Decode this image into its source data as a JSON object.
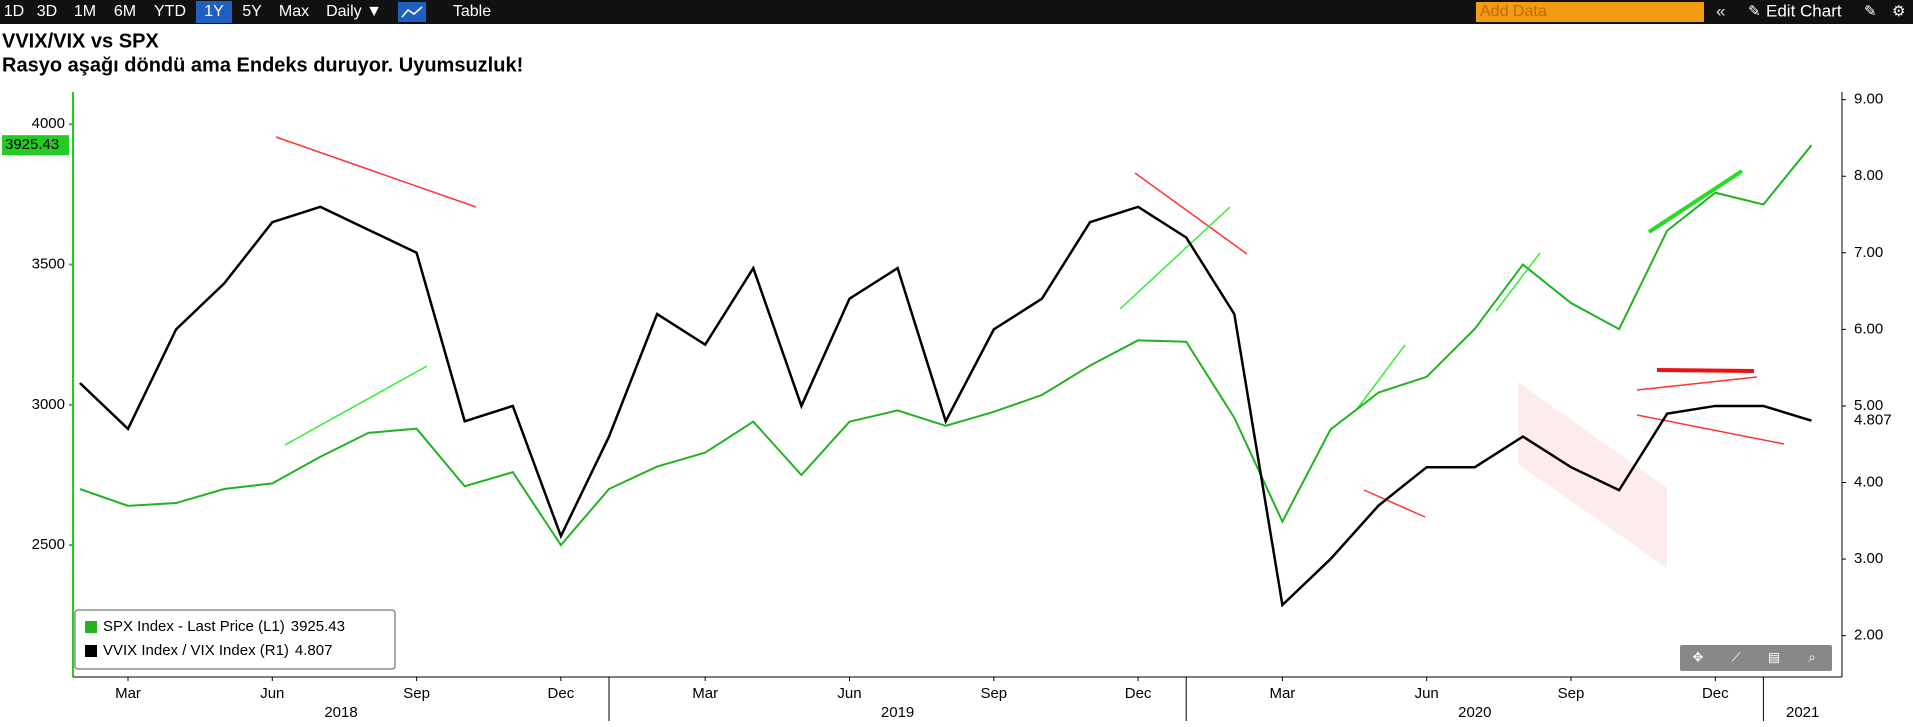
{
  "toolbar": {
    "buttons": [
      "1D",
      "3D",
      "1M",
      "6M",
      "YTD",
      "1Y",
      "5Y",
      "Max",
      "Daily ▼"
    ],
    "selected": "1Y",
    "table": "Table",
    "add_data": "Add Data",
    "edit_chart": "Edit Chart"
  },
  "chart_data": {
    "type": "line",
    "title": "VVIX/VIX vs SPX",
    "subtitle": "Rasyo aşağı döndü ama Endeks duruyor. Uyumsuzluk!",
    "x": [
      "2018-02",
      "2018-03",
      "2018-04",
      "2018-05",
      "2018-06",
      "2018-07",
      "2018-08",
      "2018-09",
      "2018-10",
      "2018-11",
      "2018-12",
      "2019-01",
      "2019-02",
      "2019-03",
      "2019-04",
      "2019-05",
      "2019-06",
      "2019-07",
      "2019-08",
      "2019-09",
      "2019-10",
      "2019-11",
      "2019-12",
      "2020-01",
      "2020-02",
      "2020-03",
      "2020-04",
      "2020-05",
      "2020-06",
      "2020-07",
      "2020-08",
      "2020-09",
      "2020-10",
      "2020-11",
      "2020-12",
      "2021-01",
      "2021-02"
    ],
    "series": [
      {
        "name": "SPX Index - Last Price (L1)",
        "color": "#22b222",
        "axis": "y",
        "values": [
          2700,
          2640,
          2650,
          2700,
          2720,
          2815,
          2900,
          2915,
          2710,
          2760,
          2500,
          2700,
          2780,
          2830,
          2940,
          2750,
          2940,
          2980,
          2925,
          2975,
          3035,
          3140,
          3230,
          3225,
          2954,
          2584,
          2912,
          3044,
          3100,
          3271,
          3500,
          3363,
          3270,
          3621,
          3756,
          3714,
          3925.43
        ]
      },
      {
        "name": "VVIX Index / VIX Index (R1)",
        "color": "#000000",
        "axis": "y2",
        "values": [
          5.3,
          4.7,
          6.0,
          6.6,
          7.4,
          7.6,
          7.3,
          7.0,
          4.8,
          5.0,
          3.3,
          4.6,
          6.2,
          5.8,
          6.8,
          5.0,
          6.4,
          6.8,
          4.8,
          6.0,
          6.4,
          7.4,
          7.6,
          7.2,
          6.2,
          2.4,
          3.0,
          3.7,
          4.2,
          4.2,
          4.6,
          4.2,
          3.9,
          4.9,
          5.0,
          5.0,
          4.807
        ]
      }
    ],
    "ylim": [
      2030,
      4115
    ],
    "yticks": [
      2500,
      3000,
      3500,
      4000
    ],
    "y2lim": [
      1.46,
      9.1
    ],
    "y2ticks": [
      {
        "value": 2,
        "label": "2.00"
      },
      {
        "value": 3,
        "label": "3.00"
      },
      {
        "value": 4,
        "label": "4.00"
      },
      {
        "value": 5,
        "label": "5.00"
      },
      {
        "value": 6,
        "label": "6.00"
      },
      {
        "value": 7,
        "label": "7.00"
      },
      {
        "value": 8,
        "label": "8.00"
      },
      {
        "value": 9,
        "label": "9.00"
      }
    ],
    "xticks": [
      {
        "value": "2018-03",
        "label": "Mar"
      },
      {
        "value": "2018-06",
        "label": "Jun"
      },
      {
        "value": "2018-09",
        "label": "Sep"
      },
      {
        "value": "2018-12",
        "label": "Dec"
      },
      {
        "value": "2019-03",
        "label": "Mar"
      },
      {
        "value": "2019-06",
        "label": "Jun"
      },
      {
        "value": "2019-09",
        "label": "Sep"
      },
      {
        "value": "2019-12",
        "label": "Dec"
      },
      {
        "value": "2020-03",
        "label": "Mar"
      },
      {
        "value": "2020-06",
        "label": "Jun"
      },
      {
        "value": "2020-09",
        "label": "Sep"
      },
      {
        "value": "2020-12",
        "label": "Dec"
      }
    ],
    "years": [
      "2018",
      "2019",
      "2020",
      "2021"
    ],
    "legend": "lower left"
  }
}
